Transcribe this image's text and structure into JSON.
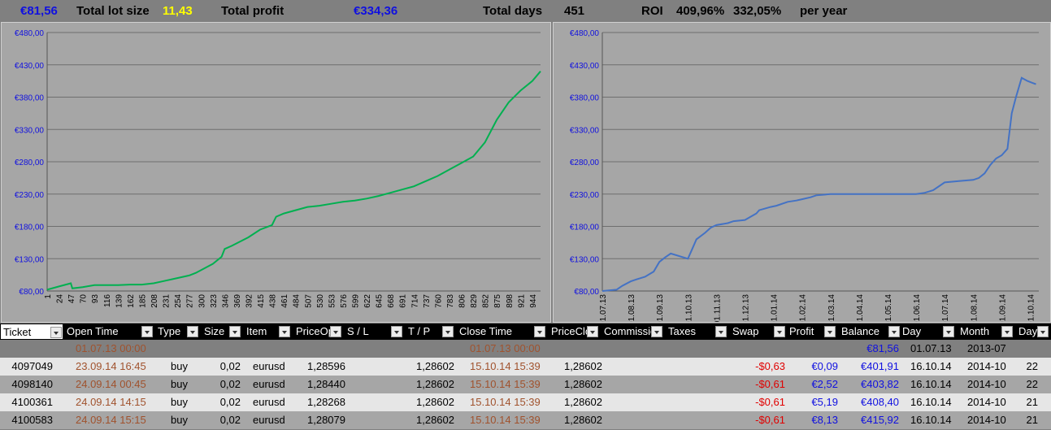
{
  "summary": {
    "balance": "€81,56",
    "lot_label": "Total lot size",
    "lot_value": "11,43",
    "profit_label": "Total profit",
    "profit_value": "€334,36",
    "days_label": "Total days",
    "days_value": "451",
    "roi_label": "ROI",
    "roi_value": "409,96%",
    "roi_year": "332,05%",
    "per_year": "per year"
  },
  "chart_data": [
    {
      "type": "line",
      "ylim": [
        80,
        480
      ],
      "yticks": [
        "€80,00",
        "€130,00",
        "€180,00",
        "€230,00",
        "€280,00",
        "€330,00",
        "€380,00",
        "€430,00",
        "€480,00"
      ],
      "categories": [
        "1",
        "24",
        "47",
        "70",
        "93",
        "116",
        "139",
        "162",
        "185",
        "208",
        "231",
        "254",
        "277",
        "300",
        "323",
        "346",
        "369",
        "392",
        "415",
        "438",
        "461",
        "484",
        "507",
        "530",
        "553",
        "576",
        "599",
        "622",
        "645",
        "668",
        "691",
        "714",
        "737",
        "760",
        "783",
        "806",
        "829",
        "852",
        "875",
        "898",
        "921",
        "944"
      ],
      "x": [
        1,
        24,
        47,
        50,
        70,
        93,
        116,
        139,
        162,
        185,
        208,
        231,
        254,
        277,
        290,
        323,
        340,
        346,
        360,
        392,
        415,
        438,
        446,
        461,
        484,
        507,
        530,
        553,
        576,
        599,
        622,
        645,
        668,
        691,
        714,
        737,
        760,
        783,
        806,
        829,
        852,
        875,
        898,
        921,
        944,
        960
      ],
      "y": [
        82,
        87,
        92,
        84,
        86,
        89,
        89,
        89,
        90,
        90,
        92,
        96,
        100,
        104,
        108,
        122,
        133,
        145,
        150,
        163,
        175,
        182,
        195,
        200,
        205,
        210,
        212,
        215,
        218,
        220,
        223,
        227,
        232,
        237,
        242,
        250,
        258,
        268,
        278,
        288,
        310,
        345,
        372,
        390,
        405,
        420
      ],
      "color": "#00b050"
    },
    {
      "type": "line",
      "ylim": [
        80,
        480
      ],
      "yticks": [
        "€80,00",
        "€130,00",
        "€180,00",
        "€230,00",
        "€280,00",
        "€330,00",
        "€380,00",
        "€430,00",
        "€480,00"
      ],
      "categories": [
        "01.07.13",
        "01.08.13",
        "01.09.13",
        "01.10.13",
        "01.11.13",
        "01.12.13",
        "01.01.14",
        "01.02.14",
        "01.03.14",
        "01.04.14",
        "01.05.14",
        "01.06.14",
        "01.07.14",
        "01.08.14",
        "01.09.14",
        "01.10.14"
      ],
      "x": [
        0,
        0.5,
        0.7,
        1.0,
        1.2,
        1.5,
        1.8,
        2.0,
        2.2,
        2.4,
        3.0,
        3.15,
        3.3,
        3.6,
        3.8,
        4.0,
        4.4,
        4.6,
        5.0,
        5.4,
        5.5,
        5.9,
        6.1,
        6.5,
        6.8,
        7.0,
        7.3,
        7.5,
        8.0,
        9.0,
        10.0,
        11.0,
        11.3,
        11.6,
        12.0,
        12.5,
        13.0,
        13.2,
        13.4,
        13.6,
        13.8,
        14.0,
        14.2,
        14.35,
        14.5,
        14.7,
        14.9,
        15.2
      ],
      "y": [
        80,
        82,
        88,
        95,
        98,
        102,
        110,
        125,
        132,
        138,
        130,
        145,
        160,
        170,
        178,
        182,
        185,
        188,
        190,
        200,
        205,
        210,
        212,
        218,
        220,
        222,
        225,
        228,
        230,
        230,
        230,
        230,
        232,
        236,
        248,
        250,
        252,
        255,
        262,
        275,
        285,
        290,
        300,
        355,
        380,
        410,
        405,
        400
      ],
      "color": "#4472c4"
    }
  ],
  "table": {
    "columns": [
      "Ticket",
      "Open Time",
      "Type",
      "Size",
      "Item",
      "PriceOp",
      "S / L",
      "T / P",
      "Close Time",
      "PriceClo",
      "Commissio",
      "Taxes",
      "Swap",
      "Profit",
      "Balance",
      "Day",
      "Month",
      "Day"
    ],
    "first_row": {
      "open_time": "01.07.13 00:00",
      "close_time": "01.07.13 00:00",
      "balance": "€81,56",
      "day": "01.07.13",
      "month": "2013-07"
    },
    "rows": [
      {
        "ticket": "4097049",
        "open_time": "23.09.14 16:45",
        "type": "buy",
        "size": "0,02",
        "item": "eurusd",
        "price_open": "1,28596",
        "tp": "1,28602",
        "close_time": "15.10.14 15:39",
        "price_close": "1,28602",
        "swap": "-$0,63",
        "profit": "€0,09",
        "balance": "€401,91",
        "day": "16.10.14",
        "month": "2014-10",
        "daynum": "22"
      },
      {
        "ticket": "4098140",
        "open_time": "24.09.14 00:45",
        "type": "buy",
        "size": "0,02",
        "item": "eurusd",
        "price_open": "1,28440",
        "tp": "1,28602",
        "close_time": "15.10.14 15:39",
        "price_close": "1,28602",
        "swap": "-$0,61",
        "profit": "€2,52",
        "balance": "€403,82",
        "day": "16.10.14",
        "month": "2014-10",
        "daynum": "22"
      },
      {
        "ticket": "4100361",
        "open_time": "24.09.14 14:15",
        "type": "buy",
        "size": "0,02",
        "item": "eurusd",
        "price_open": "1,28268",
        "tp": "1,28602",
        "close_time": "15.10.14 15:39",
        "price_close": "1,28602",
        "swap": "-$0,61",
        "profit": "€5,19",
        "balance": "€408,40",
        "day": "16.10.14",
        "month": "2014-10",
        "daynum": "21"
      },
      {
        "ticket": "4100583",
        "open_time": "24.09.14 15:15",
        "type": "buy",
        "size": "0,02",
        "item": "eurusd",
        "price_open": "1,28079",
        "tp": "1,28602",
        "close_time": "15.10.14 15:39",
        "price_close": "1,28602",
        "swap": "-$0,61",
        "profit": "€8,13",
        "balance": "€415,92",
        "day": "16.10.14",
        "month": "2014-10",
        "daynum": "21"
      }
    ]
  }
}
